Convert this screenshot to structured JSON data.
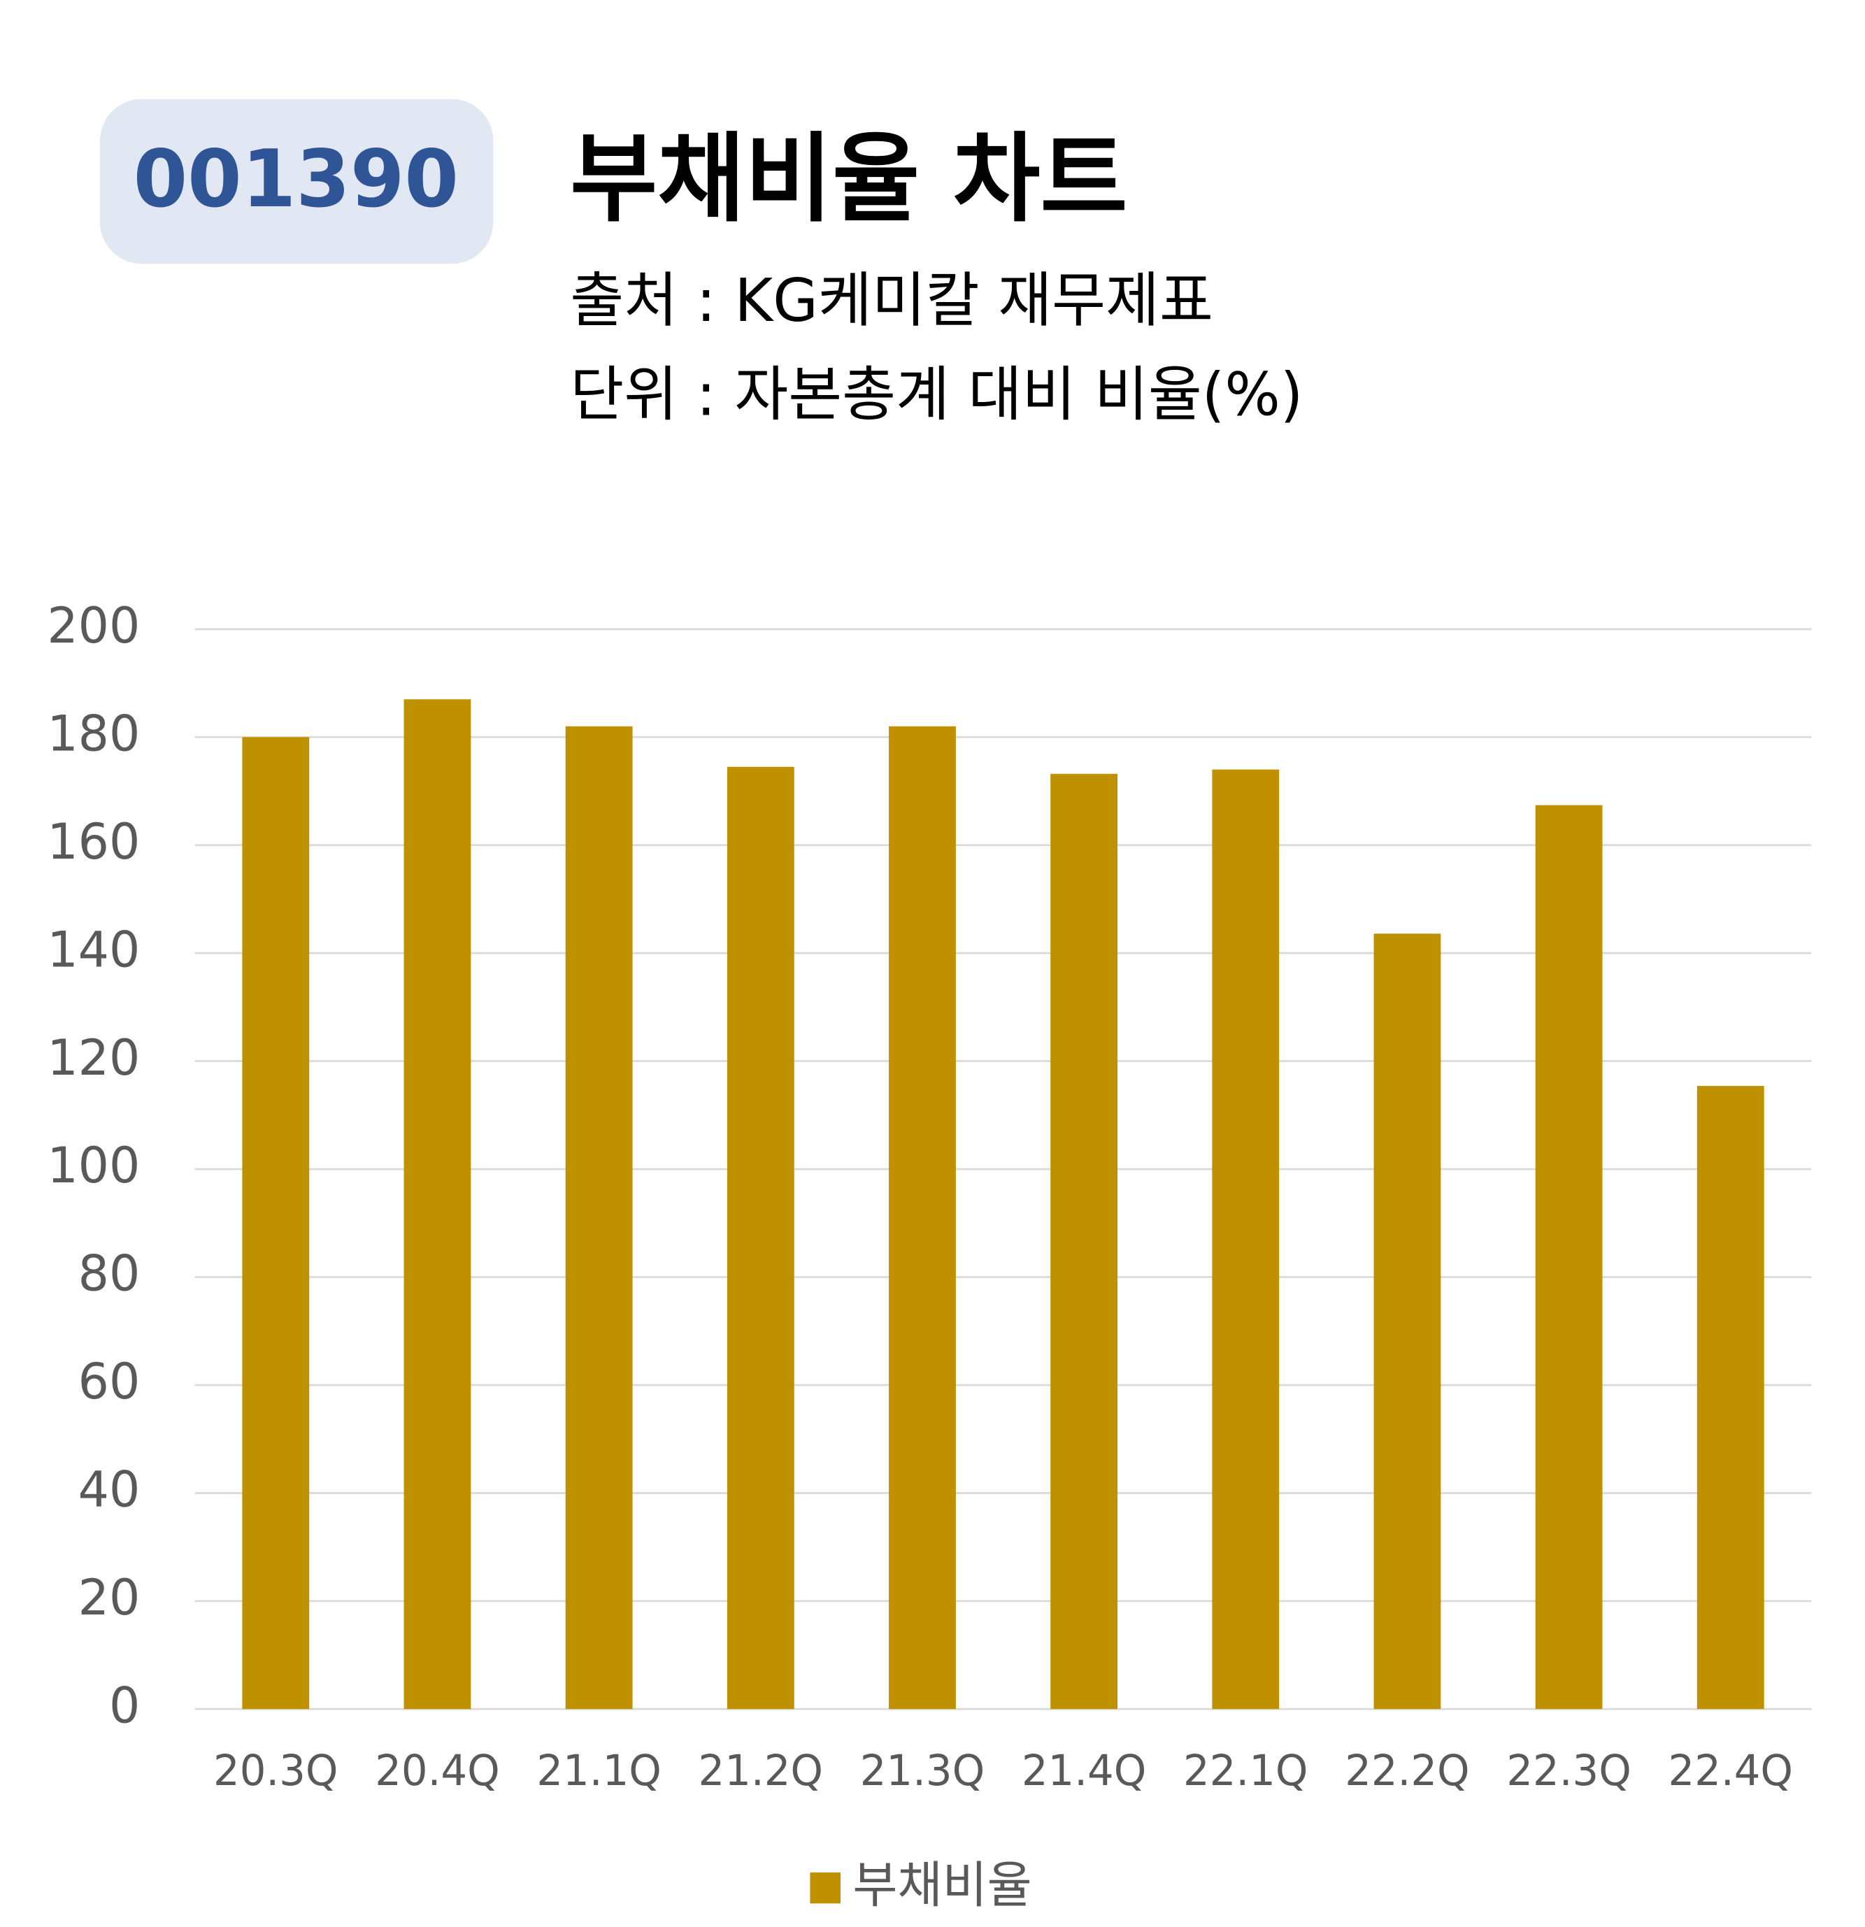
{
  "chart_data": {
    "type": "bar",
    "code": "001390",
    "title": "부채비율 차트",
    "subtitles": [
      "출처 : KG케미칼 재무제표",
      "단위 : 자본총계 대비 비율(%)"
    ],
    "categories": [
      "20.3Q",
      "20.4Q",
      "21.1Q",
      "21.2Q",
      "21.3Q",
      "21.4Q",
      "22.1Q",
      "22.2Q",
      "22.3Q",
      "22.4Q"
    ],
    "series": [
      {
        "name": "부채비율",
        "color": "#bf9000",
        "values": [
          180,
          187,
          182,
          174.5,
          182,
          173.2,
          174,
          143.6,
          167.4,
          115.4
        ]
      }
    ],
    "ylim": [
      0,
      200
    ],
    "yticks": [
      0,
      20,
      40,
      60,
      80,
      100,
      120,
      140,
      160,
      180,
      200
    ],
    "grid": true,
    "legend": "bottom"
  }
}
